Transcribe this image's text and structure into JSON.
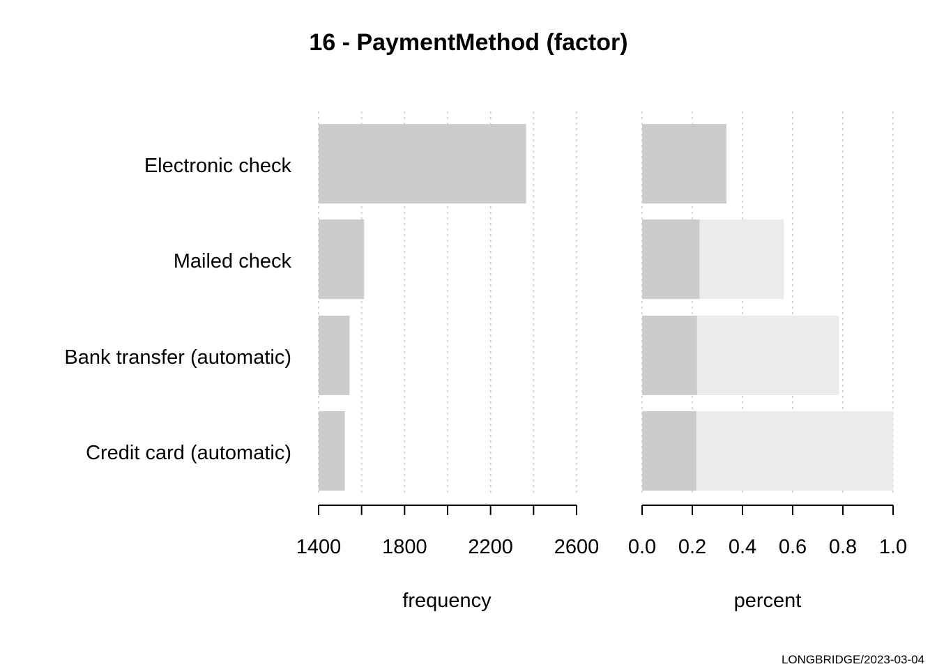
{
  "chart_data": {
    "type": "bar",
    "title": "16 - PaymentMethod (factor)",
    "categories": [
      "Electronic check",
      "Mailed check",
      "Bank transfer (automatic)",
      "Credit card (automatic)"
    ],
    "panels": [
      {
        "name": "frequency",
        "xlabel": "frequency",
        "xlim": [
          1400,
          2600
        ],
        "major_ticks": [
          1400,
          1800,
          2200,
          2600
        ],
        "minor_ticks": [
          1600,
          2000,
          2400
        ],
        "tick_labels": [
          "1400",
          "1800",
          "2200",
          "2600"
        ],
        "values": [
          2365,
          1612,
          1544,
          1522
        ]
      },
      {
        "name": "percent",
        "xlabel": "percent",
        "xlim": [
          0,
          1
        ],
        "major_ticks": [
          0,
          0.2,
          0.4,
          0.6,
          0.8,
          1.0
        ],
        "minor_ticks": [],
        "tick_labels": [
          "0.0",
          "0.2",
          "0.4",
          "0.6",
          "0.8",
          "1.0"
        ],
        "values": [
          0.336,
          0.229,
          0.219,
          0.216
        ],
        "cumulative": [
          0.336,
          0.565,
          0.784,
          1.0
        ]
      }
    ],
    "colors": {
      "bar": "#cccccc",
      "cumulative_bar": "#ebebeb",
      "grid": "#c8c8c8"
    },
    "footer": "LONGBRIDGE/2023-03-04"
  }
}
